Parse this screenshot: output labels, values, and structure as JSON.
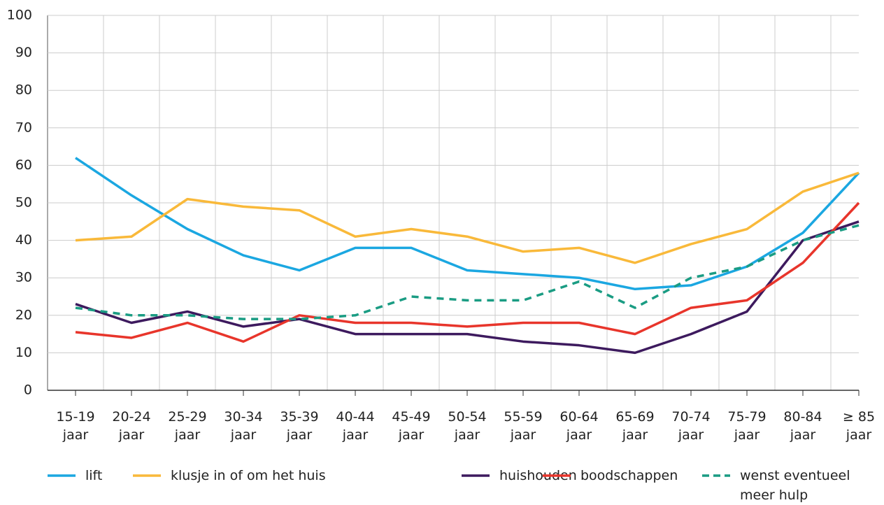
{
  "chart_data": {
    "type": "line",
    "categories": [
      "15-19 jaar",
      "20-24 jaar",
      "25-29 jaar",
      "30-34 jaar",
      "35-39 jaar",
      "40-44 jaar",
      "45-49 jaar",
      "50-54 jaar",
      "55-59 jaar",
      "60-64 jaar",
      "65-69 jaar",
      "70-74 jaar",
      "75-79 jaar",
      "80-84 jaar",
      "≥ 85 jaar"
    ],
    "series": [
      {
        "name": "lift",
        "color": "#1ba7e1",
        "values": [
          62,
          52,
          43,
          36,
          32,
          38,
          38,
          32,
          31,
          30,
          27,
          28,
          33,
          42,
          58
        ]
      },
      {
        "name": "klusje in of om het huis",
        "color": "#f9b93a",
        "values": [
          40,
          41,
          51,
          49,
          48,
          41,
          43,
          41,
          37,
          38,
          34,
          39,
          43,
          53,
          58
        ]
      },
      {
        "name": "huishouden",
        "color": "#3d1a5e",
        "values": [
          23,
          18,
          21,
          17,
          19,
          15,
          15,
          15,
          13,
          12,
          10,
          15,
          21,
          40,
          45
        ]
      },
      {
        "name": "boodschappen",
        "color": "#e8352b",
        "values": [
          15.5,
          14,
          18,
          13,
          20,
          18,
          18,
          17,
          18,
          18,
          15,
          22,
          24,
          34,
          50
        ]
      },
      {
        "name": "wenst eventueel meer hulp",
        "color": "#1a9c83",
        "dashed": true,
        "values": [
          22,
          20,
          20,
          19,
          19,
          20,
          25,
          24,
          24,
          29,
          22,
          30,
          33,
          40,
          44
        ]
      }
    ],
    "ylim": [
      0,
      100
    ],
    "yticks": [
      0,
      10,
      20,
      30,
      40,
      50,
      60,
      70,
      80,
      90,
      100
    ],
    "grid": true
  }
}
